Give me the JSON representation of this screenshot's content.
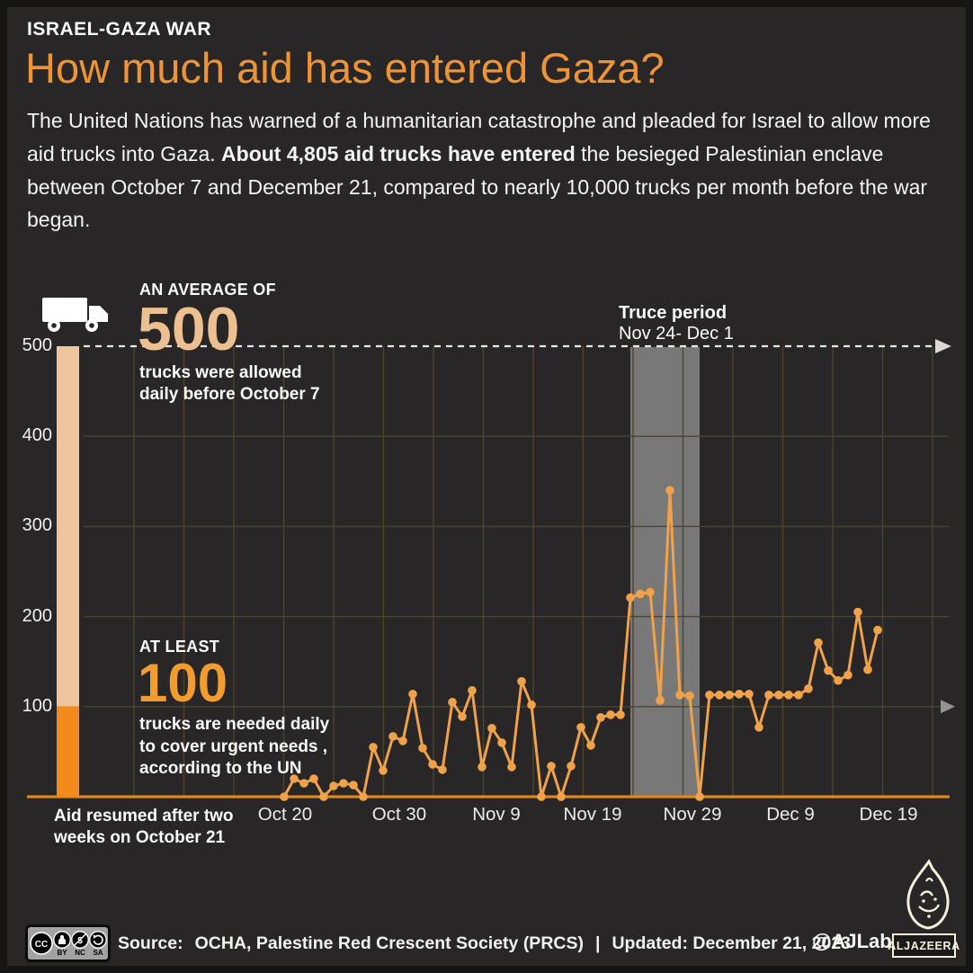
{
  "header": {
    "kicker": "ISRAEL-GAZA WAR",
    "title": "How much aid has entered Gaza?",
    "intro_before": "The United Nations has warned of a humanitarian catastrophe and pleaded for Israel to allow more aid trucks into Gaza. ",
    "intro_bold": "About 4,805 aid trucks have entered",
    "intro_after": " the besieged Palestinian enclave between October 7 and December 21, compared to nearly 10,000 trucks per month before the war began."
  },
  "annotations": {
    "avg": {
      "label": "AN AVERAGE OF",
      "value": "500",
      "desc": [
        "trucks were allowed",
        "daily before October 7"
      ]
    },
    "min": {
      "label": "AT LEAST",
      "value": "100",
      "desc": [
        "trucks are needed daily",
        "to cover urgent needs ,",
        "according to the UN"
      ]
    },
    "truce": {
      "title": "Truce period",
      "dates": "Nov 24- Dec 1"
    },
    "aid_resumed": [
      "Aid resumed after two",
      "weeks on October 21"
    ]
  },
  "chart_data": {
    "type": "line",
    "x": [
      "Oct 20",
      "Oct 21",
      "Oct 22",
      "Oct 23",
      "Oct 24",
      "Oct 25",
      "Oct 26",
      "Oct 27",
      "Oct 28",
      "Oct 29",
      "Oct 30",
      "Oct 31",
      "Nov 1",
      "Nov 2",
      "Nov 3",
      "Nov 4",
      "Nov 5",
      "Nov 6",
      "Nov 7",
      "Nov 8",
      "Nov 9",
      "Nov 10",
      "Nov 11",
      "Nov 12",
      "Nov 13",
      "Nov 14",
      "Nov 15",
      "Nov 16",
      "Nov 17",
      "Nov 18",
      "Nov 19",
      "Nov 20",
      "Nov 21",
      "Nov 22",
      "Nov 23",
      "Nov 24",
      "Nov 25",
      "Nov 26",
      "Nov 27",
      "Nov 28",
      "Nov 29",
      "Nov 30",
      "Dec 1",
      "Dec 2",
      "Dec 3",
      "Dec 4",
      "Dec 5",
      "Dec 6",
      "Dec 7",
      "Dec 8",
      "Dec 9",
      "Dec 10",
      "Dec 11",
      "Dec 12",
      "Dec 13",
      "Dec 14",
      "Dec 15",
      "Dec 16",
      "Dec 17",
      "Dec 18",
      "Dec 19"
    ],
    "values": [
      0,
      20,
      15,
      20,
      0,
      12,
      15,
      13,
      0,
      55,
      29,
      67,
      62,
      114,
      54,
      36,
      30,
      105,
      89,
      118,
      33,
      76,
      60,
      33,
      128,
      102,
      0,
      34,
      0,
      34,
      77,
      57,
      88,
      91,
      91,
      221,
      225,
      227,
      107,
      340,
      113,
      112,
      0,
      113,
      113,
      113,
      114,
      114,
      77,
      113,
      113,
      113,
      113,
      120,
      171,
      140,
      129,
      135,
      205,
      141,
      185
    ],
    "ylim": [
      0,
      500
    ],
    "yticks": [
      100,
      200,
      300,
      400,
      500
    ],
    "xticks": [
      "Oct 20",
      "Oct 30",
      "Nov 9",
      "Nov 19",
      "Nov 29",
      "Dec 9",
      "Dec 19"
    ],
    "reference_levels": {
      "daily_average_before_war": 500,
      "daily_minimum_needed": 100
    },
    "truce_band": {
      "start": "Nov 24",
      "end": "Dec 1"
    },
    "grid": true,
    "legend": "none"
  },
  "colors": {
    "accent_title": "#ef9434",
    "big_500": "#ecc091",
    "big_100": "#f19c2e",
    "line": "#f0a24a",
    "bar_top": "#eec59d",
    "bar_bottom": "#f28b1c",
    "baseline": "#de861f",
    "grid": "#4e4429",
    "truce_band": "#7f7f7f",
    "dashed_line": "#ebebeb",
    "background": "#282626",
    "logo_cream": "#f5efdc"
  },
  "footer": {
    "cc_labels": [
      "BY",
      "NC",
      "SA"
    ],
    "source_label": "Source:",
    "source_text": "OCHA, Palestine Red Crescent Society (PRCS)",
    "separator": "|",
    "updated": "Updated: December 21, 2023",
    "handle": "@AJLabs",
    "logo_text": "ALJAZEERA"
  }
}
